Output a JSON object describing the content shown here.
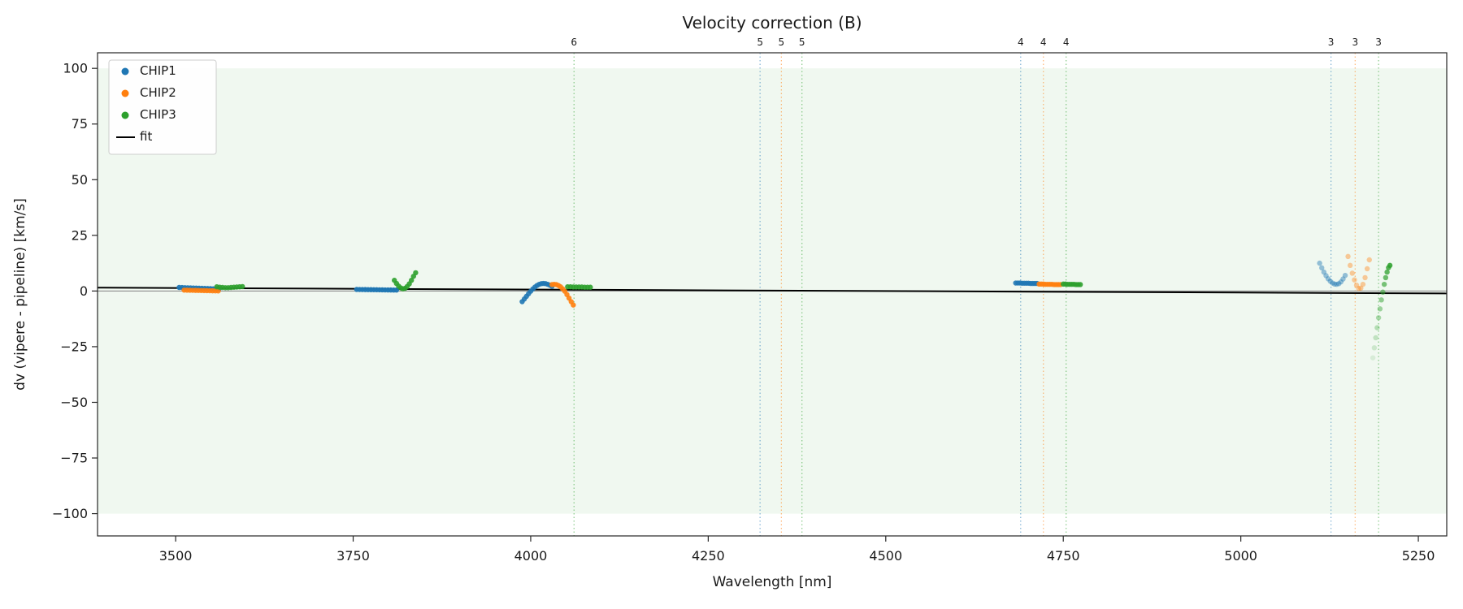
{
  "chart_data": {
    "type": "scatter",
    "title": "Velocity correction (B)",
    "xlabel": "Wavelength [nm]",
    "ylabel": "dv (vipere - pipeline) [km/s]",
    "xlim": [
      3390,
      5290
    ],
    "ylim": [
      -110,
      107
    ],
    "xticks": [
      3500,
      3750,
      4000,
      4250,
      4500,
      4750,
      5000,
      5250
    ],
    "yticks": [
      -100,
      -75,
      -50,
      -25,
      0,
      25,
      50,
      75,
      100
    ],
    "ytick_labels": [
      "−100",
      "−75",
      "−50",
      "−25",
      "0",
      "25",
      "50",
      "75",
      "100"
    ],
    "grid": false,
    "band": {
      "ymin": -100,
      "ymax": 100,
      "color": "rgba(44,160,44,0.07)"
    },
    "zero_line": {
      "y": 0,
      "color": "#7f7f7f"
    },
    "fit_line": {
      "color": "#000000",
      "points": [
        [
          3390,
          1.5
        ],
        [
          5290,
          -1.1
        ]
      ]
    },
    "legend": {
      "position": "upper-left",
      "items": [
        {
          "label": "CHIP1",
          "color": "#1f77b4",
          "marker": "dot"
        },
        {
          "label": "CHIP2",
          "color": "#ff7f0e",
          "marker": "dot"
        },
        {
          "label": "CHIP3",
          "color": "#2ca02c",
          "marker": "dot"
        },
        {
          "label": "fit",
          "color": "#000000",
          "marker": "line"
        }
      ]
    },
    "vlines": [
      {
        "x": 4061,
        "color": "#2ca02c",
        "label": "6"
      },
      {
        "x": 4323,
        "color": "#1f77b4",
        "label": "5"
      },
      {
        "x": 4353,
        "color": "#ff7f0e",
        "label": "5"
      },
      {
        "x": 4382,
        "color": "#2ca02c",
        "label": "5"
      },
      {
        "x": 4690,
        "color": "#1f77b4",
        "label": "4"
      },
      {
        "x": 4722,
        "color": "#ff7f0e",
        "label": "4"
      },
      {
        "x": 4754,
        "color": "#2ca02c",
        "label": "4"
      },
      {
        "x": 5127,
        "color": "#1f77b4",
        "label": "3"
      },
      {
        "x": 5161,
        "color": "#ff7f0e",
        "label": "3"
      },
      {
        "x": 5194,
        "color": "#2ca02c",
        "label": "3"
      }
    ],
    "series": [
      {
        "name": "CHIP1",
        "color": "#1f77b4",
        "clusters": [
          {
            "alpha": 0.95,
            "points": [
              [
                3505,
                1.6
              ],
              [
                3509,
                1.55
              ],
              [
                3513,
                1.5
              ],
              [
                3517,
                1.45
              ],
              [
                3521,
                1.4
              ],
              [
                3525,
                1.35
              ],
              [
                3529,
                1.3
              ],
              [
                3533,
                1.25
              ],
              [
                3537,
                1.2
              ],
              [
                3541,
                1.15
              ],
              [
                3545,
                1.1
              ],
              [
                3549,
                1.05
              ],
              [
                3553,
                1.0
              ],
              [
                3557,
                0.95
              ],
              [
                3561,
                0.9
              ]
            ]
          },
          {
            "alpha": 0.95,
            "points": [
              [
                3755,
                0.7
              ],
              [
                3759,
                0.68
              ],
              [
                3763,
                0.66
              ],
              [
                3767,
                0.64
              ],
              [
                3771,
                0.62
              ],
              [
                3775,
                0.6
              ],
              [
                3779,
                0.58
              ],
              [
                3783,
                0.56
              ],
              [
                3787,
                0.54
              ],
              [
                3791,
                0.52
              ],
              [
                3795,
                0.5
              ],
              [
                3799,
                0.48
              ],
              [
                3803,
                0.46
              ],
              [
                3807,
                0.44
              ],
              [
                3811,
                0.42
              ]
            ]
          },
          {
            "alpha": 0.9,
            "points": [
              [
                3988,
                -4.8
              ],
              [
                3991,
                -3.6
              ],
              [
                3994,
                -2.4
              ],
              [
                3997,
                -1.2
              ],
              [
                4000,
                -0.1
              ],
              [
                4003,
                0.9
              ],
              [
                4006,
                1.8
              ],
              [
                4009,
                2.5
              ],
              [
                4012,
                3.0
              ],
              [
                4015,
                3.3
              ],
              [
                4018,
                3.4
              ],
              [
                4021,
                3.3
              ],
              [
                4024,
                3.0
              ],
              [
                4027,
                2.6
              ],
              [
                4030,
                2.1
              ]
            ]
          },
          {
            "alpha": 0.9,
            "points": [
              [
                4683,
                3.6
              ],
              [
                4686,
                3.6
              ],
              [
                4689,
                3.6
              ],
              [
                4692,
                3.5
              ],
              [
                4695,
                3.5
              ],
              [
                4698,
                3.5
              ],
              [
                4701,
                3.5
              ],
              [
                4704,
                3.4
              ],
              [
                4707,
                3.4
              ],
              [
                4710,
                3.4
              ],
              [
                4713,
                3.4
              ]
            ]
          },
          {
            "alpha": 0.45,
            "points": [
              [
                5111,
                12.5
              ],
              [
                5114,
                10.4
              ],
              [
                5117,
                8.5
              ],
              [
                5120,
                6.9
              ],
              [
                5123,
                5.5
              ],
              [
                5126,
                4.4
              ],
              [
                5129,
                3.6
              ],
              [
                5132,
                3.1
              ],
              [
                5135,
                3.0
              ],
              [
                5138,
                3.3
              ],
              [
                5141,
                4.1
              ],
              [
                5144,
                5.4
              ],
              [
                5147,
                7.0
              ]
            ]
          }
        ]
      },
      {
        "name": "CHIP2",
        "color": "#ff7f0e",
        "clusters": [
          {
            "alpha": 0.9,
            "points": [
              [
                3512,
                0.4
              ],
              [
                3516,
                0.37
              ],
              [
                3520,
                0.34
              ],
              [
                3524,
                0.31
              ],
              [
                3528,
                0.28
              ],
              [
                3532,
                0.25
              ],
              [
                3536,
                0.22
              ],
              [
                3540,
                0.19
              ],
              [
                3544,
                0.16
              ],
              [
                3548,
                0.13
              ],
              [
                3552,
                0.1
              ],
              [
                3556,
                0.07
              ],
              [
                3560,
                0.05
              ]
            ]
          },
          {
            "alpha": 0.9,
            "points": [
              [
                4030,
                2.9
              ],
              [
                4033,
                3.0
              ],
              [
                4036,
                2.9
              ],
              [
                4039,
                2.5
              ],
              [
                4042,
                1.9
              ],
              [
                4045,
                1.0
              ],
              [
                4048,
                -0.1
              ],
              [
                4051,
                -1.6
              ],
              [
                4054,
                -3.2
              ],
              [
                4057,
                -4.8
              ],
              [
                4060,
                -6.3
              ]
            ]
          },
          {
            "alpha": 0.9,
            "points": [
              [
                4716,
                3.1
              ],
              [
                4719,
                3.1
              ],
              [
                4722,
                3.1
              ],
              [
                4725,
                3.0
              ],
              [
                4728,
                3.0
              ],
              [
                4731,
                3.0
              ],
              [
                4734,
                3.0
              ],
              [
                4737,
                2.9
              ],
              [
                4740,
                2.9
              ],
              [
                4743,
                2.9
              ],
              [
                4746,
                2.9
              ]
            ]
          },
          {
            "alpha": 0.4,
            "points": [
              [
                5151,
                15.5
              ],
              [
                5154,
                11.5
              ],
              [
                5157,
                8.0
              ],
              [
                5160,
                5.0
              ],
              [
                5163,
                2.6
              ],
              [
                5166,
                1.1
              ],
              [
                5169,
                1.3
              ],
              [
                5172,
                3.0
              ],
              [
                5175,
                6.0
              ],
              [
                5178,
                10.0
              ],
              [
                5181,
                14.0
              ]
            ]
          }
        ]
      },
      {
        "name": "CHIP3",
        "color": "#2ca02c",
        "clusters": [
          {
            "alpha": 0.9,
            "points": [
              [
                3558,
                1.9
              ],
              [
                3562,
                1.7
              ],
              [
                3566,
                1.6
              ],
              [
                3570,
                1.5
              ],
              [
                3574,
                1.5
              ],
              [
                3578,
                1.6
              ],
              [
                3582,
                1.7
              ],
              [
                3586,
                1.8
              ],
              [
                3590,
                1.9
              ],
              [
                3594,
                2.0
              ]
            ]
          },
          {
            "alpha": 0.9,
            "points": [
              [
                3808,
                4.8
              ],
              [
                3811,
                3.4
              ],
              [
                3814,
                2.2
              ],
              [
                3817,
                1.4
              ],
              [
                3820,
                1.0
              ],
              [
                3823,
                1.2
              ],
              [
                3826,
                2.0
              ],
              [
                3829,
                3.2
              ],
              [
                3832,
                4.8
              ],
              [
                3835,
                6.6
              ],
              [
                3838,
                8.2
              ]
            ]
          },
          {
            "alpha": 0.9,
            "points": [
              [
                4052,
                1.9
              ],
              [
                4056,
                1.9
              ],
              [
                4060,
                1.8
              ],
              [
                4064,
                1.8
              ],
              [
                4068,
                1.8
              ],
              [
                4072,
                1.8
              ],
              [
                4076,
                1.7
              ],
              [
                4080,
                1.7
              ],
              [
                4084,
                1.7
              ]
            ]
          },
          {
            "alpha": 0.9,
            "points": [
              [
                4750,
                3.1
              ],
              [
                4753,
                3.1
              ],
              [
                4756,
                3.0
              ],
              [
                4759,
                3.0
              ],
              [
                4762,
                3.0
              ],
              [
                4765,
                3.0
              ],
              [
                4768,
                2.9
              ],
              [
                4771,
                2.9
              ],
              [
                4774,
                2.9
              ]
            ]
          },
          {
            "fade": true,
            "points": [
              [
                5186,
                -30
              ],
              [
                5188,
                -25.5
              ],
              [
                5190,
                -21
              ],
              [
                5192,
                -16.5
              ],
              [
                5194,
                -12
              ],
              [
                5196,
                -8
              ],
              [
                5198,
                -4
              ],
              [
                5200,
                -0.5
              ],
              [
                5202,
                3
              ],
              [
                5204,
                6
              ],
              [
                5206,
                8.5
              ],
              [
                5208,
                10.5
              ],
              [
                5210,
                11.5
              ]
            ]
          }
        ]
      }
    ]
  }
}
